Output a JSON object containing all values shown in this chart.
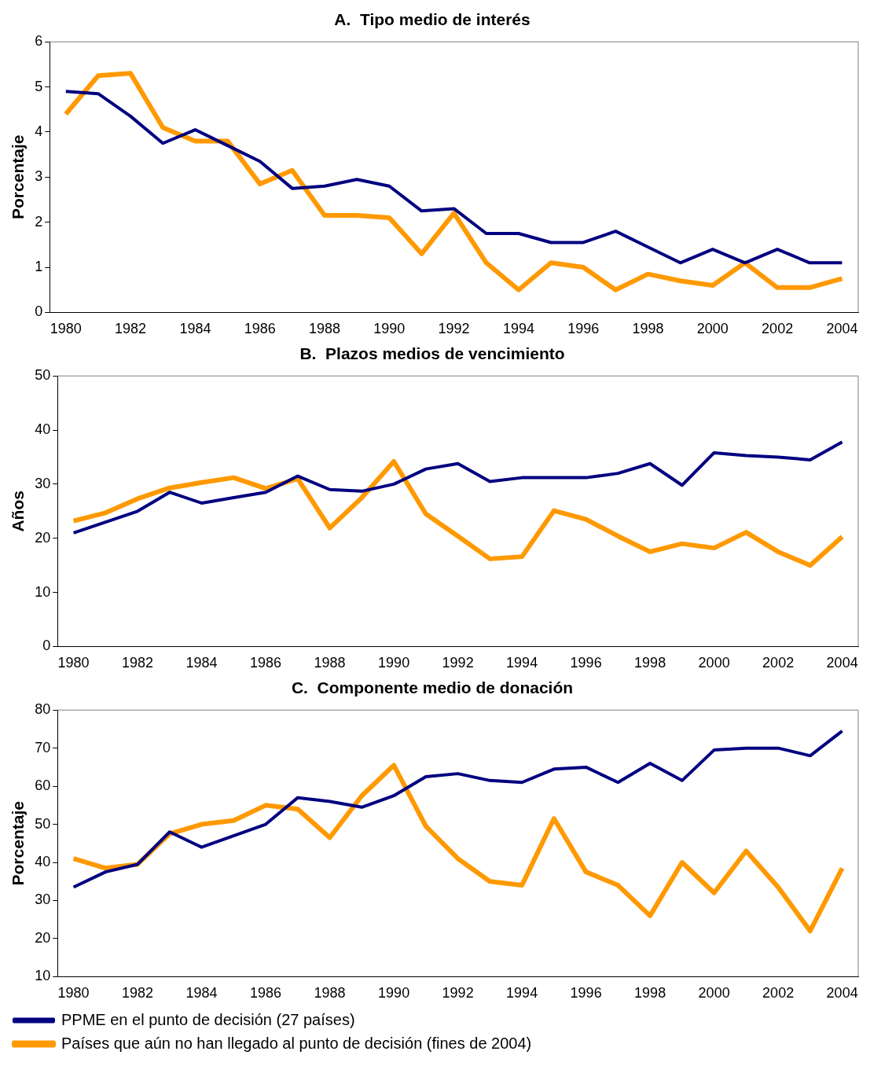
{
  "chart_data": [
    {
      "type": "line",
      "title": "A.  Tipo medio de interés",
      "ylabel": "Porcentaje",
      "categories": [
        "1980",
        null,
        "1982",
        null,
        "1984",
        null,
        "1986",
        null,
        "1988",
        null,
        "1990",
        null,
        "1992",
        null,
        "1994",
        null,
        "1996",
        null,
        "1998",
        null,
        "2000",
        null,
        "2002",
        null,
        "2004"
      ],
      "ylim": [
        0,
        6
      ],
      "yticks": [
        0,
        1,
        2,
        3,
        4,
        5,
        6
      ],
      "legend": false,
      "series": [
        {
          "color": "#000080",
          "values": [
            4.9,
            4.85,
            4.35,
            3.75,
            4.05,
            3.7,
            3.35,
            2.75,
            2.8,
            2.95,
            2.8,
            2.25,
            2.3,
            1.75,
            1.75,
            1.55,
            1.55,
            1.8,
            1.45,
            1.1,
            1.4,
            1.1,
            1.4,
            1.1,
            1.1
          ]
        },
        {
          "color": "#ff9900",
          "values": [
            4.4,
            5.25,
            5.3,
            4.1,
            3.8,
            3.8,
            2.85,
            3.15,
            2.15,
            2.15,
            2.1,
            1.3,
            2.2,
            1.1,
            0.5,
            1.1,
            1.0,
            0.5,
            0.85,
            0.7,
            0.6,
            1.1,
            0.55,
            0.55,
            0.75
          ]
        }
      ]
    },
    {
      "type": "line",
      "title": "B.  Plazos medios de vencimiento",
      "ylabel": "Años",
      "categories": [
        "1980",
        null,
        "1982",
        null,
        "1984",
        null,
        "1986",
        null,
        "1988",
        null,
        "1990",
        null,
        "1992",
        null,
        "1994",
        null,
        "1996",
        null,
        "1998",
        null,
        "2000",
        null,
        "2002",
        null,
        "2004"
      ],
      "ylim": [
        0,
        50
      ],
      "yticks": [
        0,
        10,
        20,
        30,
        40,
        50
      ],
      "legend": false,
      "series": [
        {
          "color": "#000080",
          "values": [
            21,
            23,
            25,
            28.5,
            26.5,
            27.5,
            28.5,
            31.5,
            29,
            28.7,
            30,
            32.8,
            33.8,
            30.5,
            31.2,
            31.2,
            31.2,
            32,
            33.8,
            29.8,
            35.8,
            35.3,
            35,
            34.5,
            37.8
          ]
        },
        {
          "color": "#ff9900",
          "values": [
            23.2,
            24.7,
            27.3,
            29.3,
            30.3,
            31.2,
            29.2,
            31,
            21.9,
            27.5,
            34.2,
            24.5,
            20.4,
            16.2,
            16.6,
            25.1,
            23.5,
            20.4,
            17.5,
            19,
            18.2,
            21.1,
            17.5,
            15,
            20.3
          ]
        }
      ]
    },
    {
      "type": "line",
      "title": "C.  Componente medio de donación",
      "ylabel": "Porcentaje",
      "categories": [
        "1980",
        null,
        "1982",
        null,
        "1984",
        null,
        "1986",
        null,
        "1988",
        null,
        "1990",
        null,
        "1992",
        null,
        "1994",
        null,
        "1996",
        null,
        "1998",
        null,
        "2000",
        null,
        "2002",
        null,
        "2004"
      ],
      "ylim": [
        10,
        80
      ],
      "yticks": [
        10,
        20,
        30,
        40,
        50,
        60,
        70,
        80
      ],
      "legend": "bottom",
      "series": [
        {
          "name": "PPME en el punto de decisión (27 países)",
          "color": "#000080",
          "values": [
            33.5,
            37.5,
            39.5,
            48,
            44,
            47,
            50,
            57,
            56,
            54.5,
            57.5,
            62.5,
            63.3,
            61.5,
            61,
            64.5,
            65,
            61,
            66,
            61.5,
            69.5,
            70,
            70,
            68,
            74.5
          ]
        },
        {
          "name": "Países que aún no han llegado al punto de decisión (fines de 2004)",
          "color": "#ff9900",
          "values": [
            41,
            38.5,
            39.5,
            47.5,
            50,
            51,
            55,
            54,
            46.5,
            57.5,
            65.5,
            49.5,
            41,
            35,
            34,
            51.5,
            37.5,
            34,
            26,
            40,
            32,
            43,
            33.5,
            22,
            38.5
          ]
        }
      ]
    }
  ]
}
